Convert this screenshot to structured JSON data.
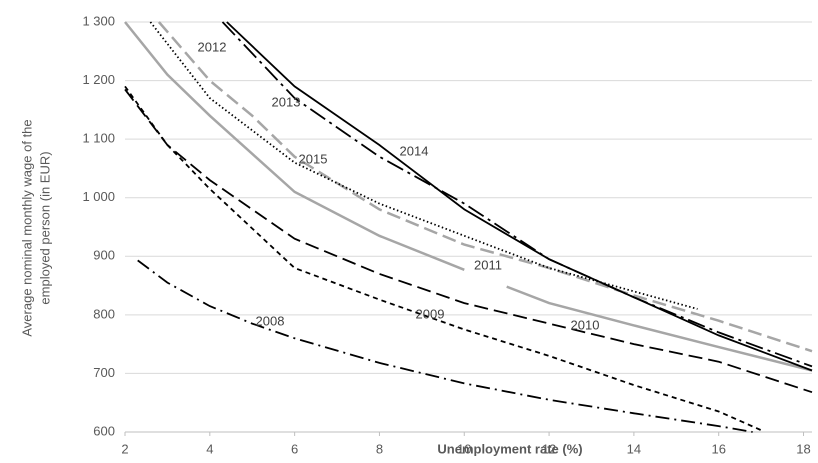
{
  "chart_data": {
    "type": "line",
    "x_label": "Unemployment rate (%)",
    "y_label": [
      "Average nominal monthly wage of the",
      "employed person (in EUR)"
    ],
    "xlim": [
      2,
      18.2
    ],
    "xticks": [
      2,
      4,
      6,
      8,
      10,
      12,
      14,
      16,
      18
    ],
    "ylim": [
      600,
      1300
    ],
    "yticks": [
      {
        "value": 600,
        "label": "600"
      },
      {
        "value": 700,
        "label": "700"
      },
      {
        "value": 800,
        "label": "800"
      },
      {
        "value": 900,
        "label": "900"
      },
      {
        "value": 1000,
        "label": "1 000"
      },
      {
        "value": 1100,
        "label": "1 100"
      },
      {
        "value": 1200,
        "label": "1 200"
      },
      {
        "value": 1300,
        "label": "1 300"
      }
    ],
    "grid": true,
    "series": [
      {
        "name": "2008",
        "color": "#000000",
        "dash": "dashdot",
        "x": [
          2.3,
          3,
          4,
          5,
          6,
          8,
          10,
          12,
          14,
          16,
          16.8
        ],
        "values": [
          893,
          855,
          815,
          785,
          760,
          718,
          683,
          655,
          632,
          610,
          600
        ]
      },
      {
        "name": "2009",
        "color": "#000000",
        "dash": "short",
        "x": [
          2,
          3,
          4,
          6,
          8,
          10,
          12,
          14,
          16,
          17
        ],
        "values": [
          1190,
          1090,
          1015,
          880,
          826,
          775,
          730,
          680,
          635,
          603
        ]
      },
      {
        "name": "2010",
        "color": "#000000",
        "dash": "long",
        "x": [
          2,
          3,
          4,
          6,
          8,
          10,
          12,
          14,
          16,
          18.2
        ],
        "values": [
          1185,
          1090,
          1030,
          930,
          870,
          820,
          785,
          750,
          720,
          668
        ]
      },
      {
        "name": "2011",
        "color": "#a6a6a6",
        "dash": "solid",
        "x": [
          2,
          3,
          4,
          6,
          8,
          10,
          10.5,
          11,
          12,
          14,
          16,
          18.2
        ],
        "values": [
          1300,
          1210,
          1140,
          1010,
          935,
          877,
          null,
          848,
          820,
          782,
          745,
          705
        ]
      },
      {
        "name": "2012",
        "color": "#a6a6a6",
        "dash": "long",
        "x": [
          2.8,
          4,
          5,
          6,
          8,
          10,
          12,
          14,
          16,
          18.2
        ],
        "values": [
          1300,
          1200,
          1140,
          1070,
          980,
          920,
          880,
          833,
          790,
          738
        ]
      },
      {
        "name": "2013",
        "color": "#000000",
        "dash": "longdot",
        "x": [
          4.3,
          6,
          8,
          10,
          12,
          14,
          16,
          18.2
        ],
        "values": [
          1300,
          1170,
          1070,
          990,
          895,
          830,
          770,
          712
        ]
      },
      {
        "name": "2014",
        "color": "#000000",
        "dash": "solid",
        "x": [
          4.4,
          6,
          8,
          10,
          12,
          14,
          16,
          18.2
        ],
        "values": [
          1300,
          1190,
          1090,
          980,
          895,
          830,
          765,
          705
        ]
      },
      {
        "name": "2015",
        "color": "#000000",
        "dash": "dot",
        "x": [
          2.6,
          4,
          6,
          8,
          10,
          12,
          14,
          15.5
        ],
        "values": [
          1300,
          1170,
          1060,
          990,
          935,
          880,
          840,
          810
        ]
      }
    ]
  }
}
